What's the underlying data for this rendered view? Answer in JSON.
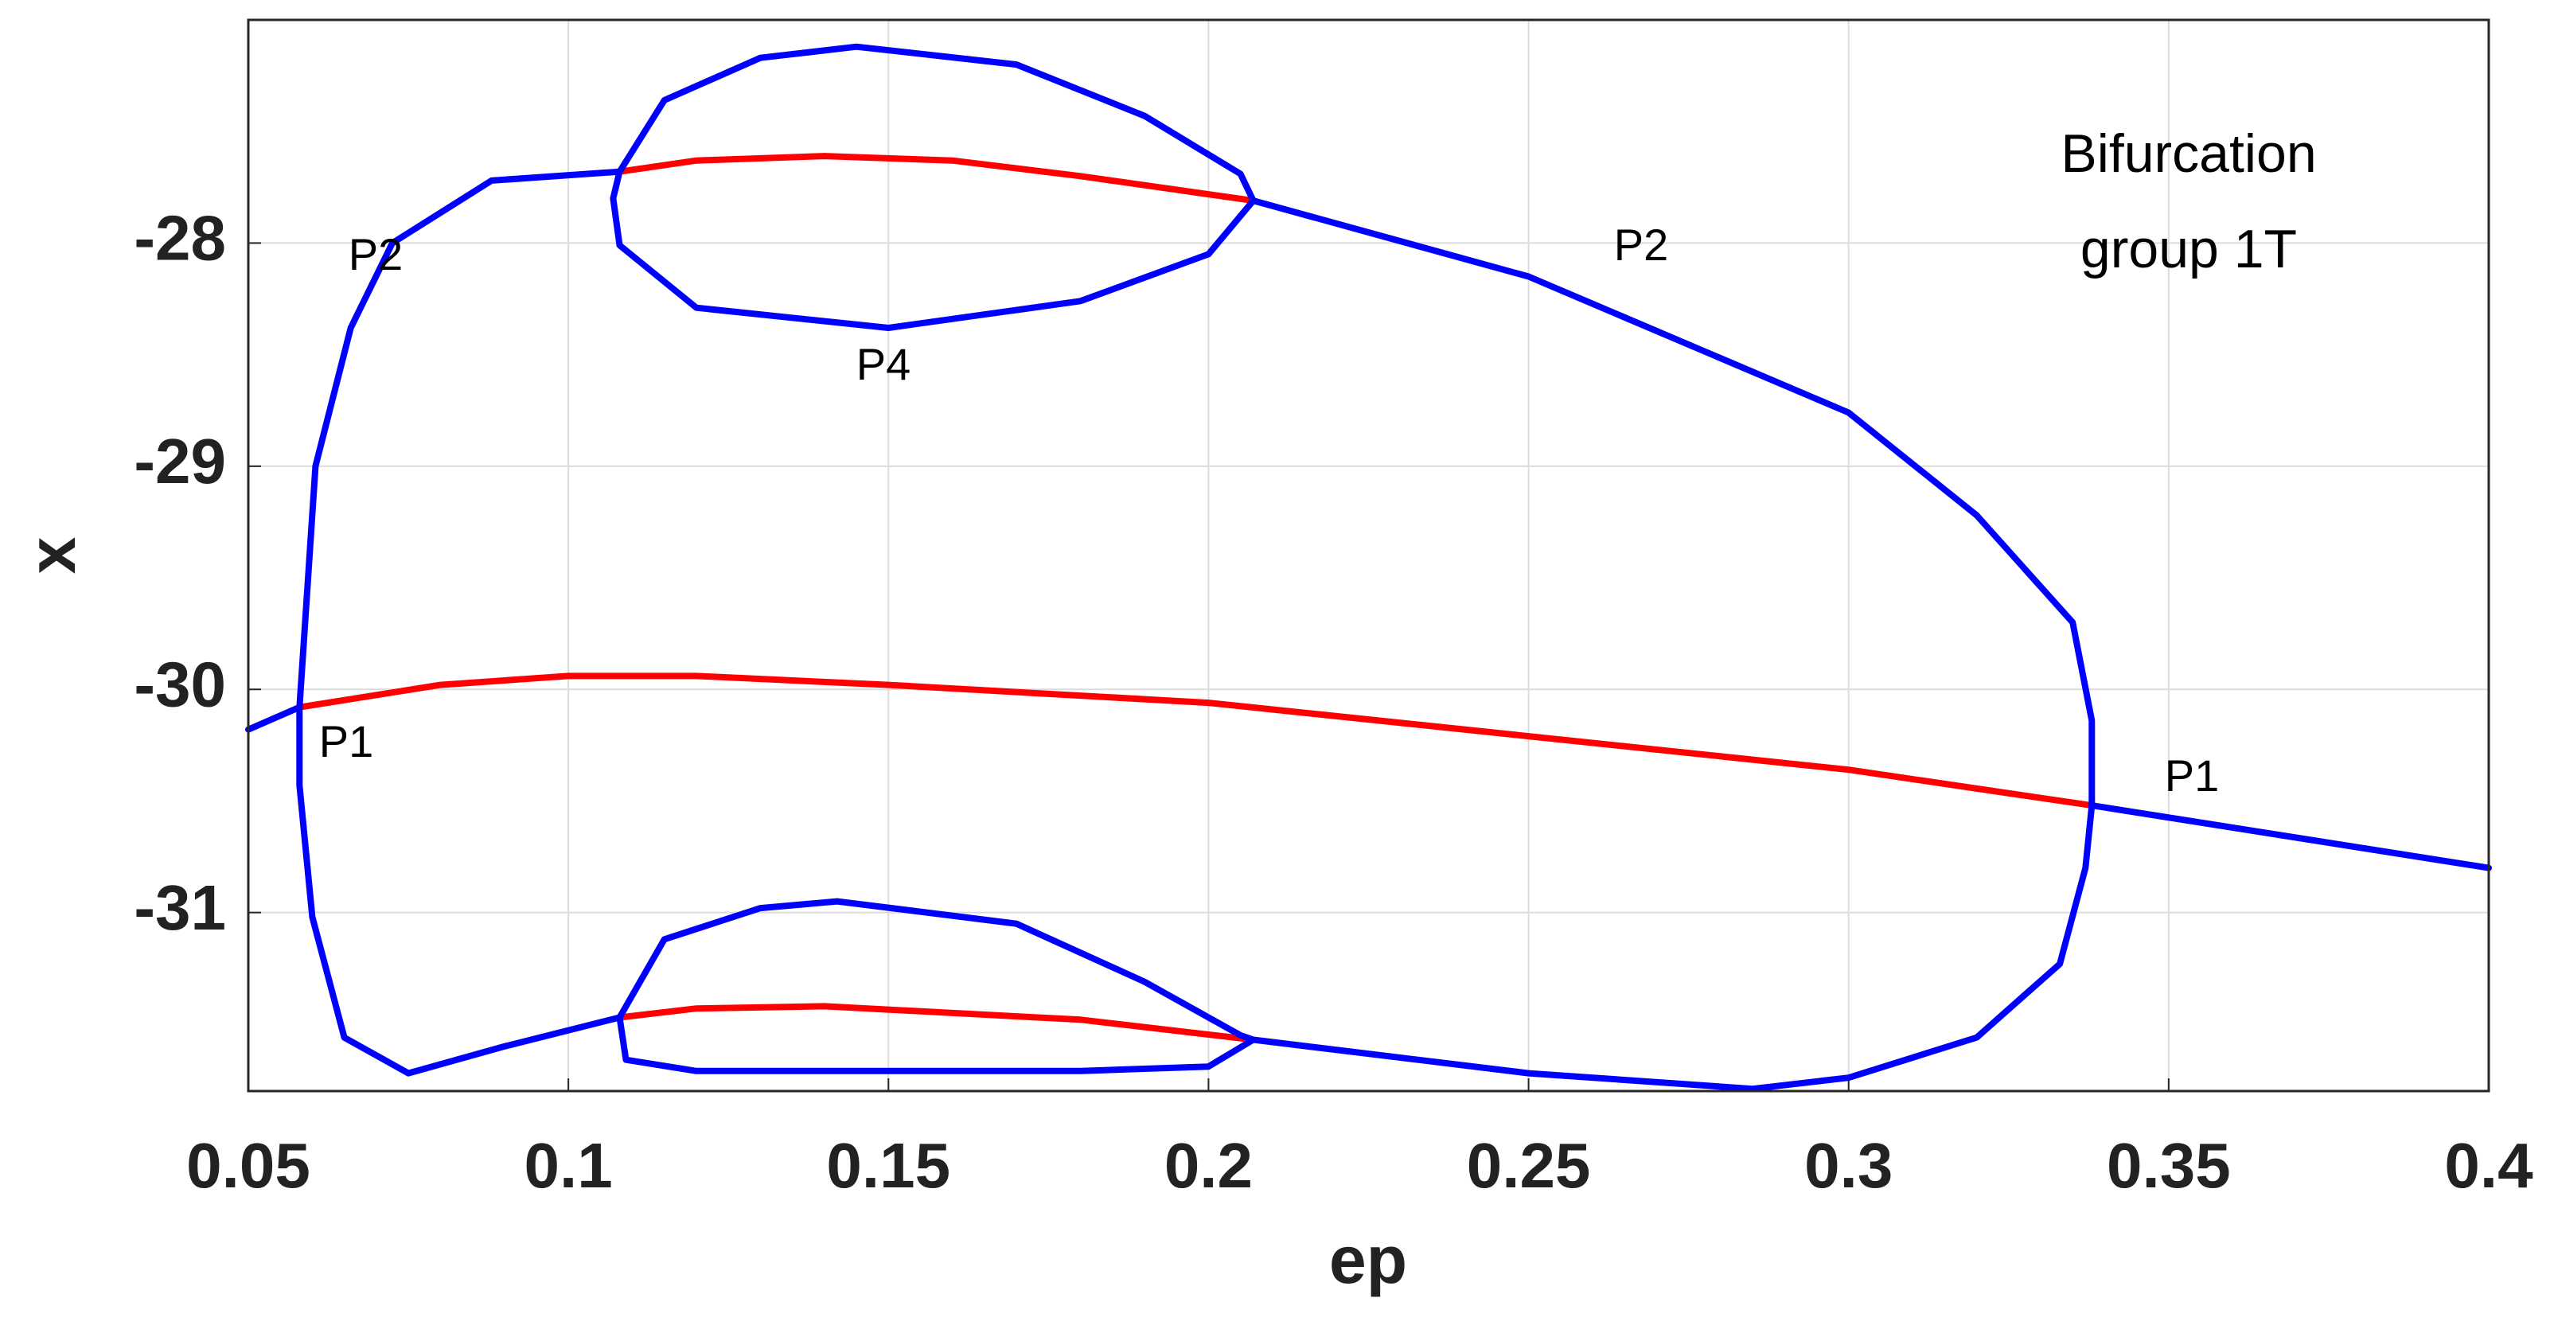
{
  "chart_data": {
    "type": "line",
    "xlabel": "ep",
    "ylabel": "x",
    "xlim": [
      0.05,
      0.4
    ],
    "ylim": [
      -31.8,
      -27
    ],
    "xticks": [
      0.05,
      0.1,
      0.15,
      0.2,
      0.25,
      0.3,
      0.35,
      0.4
    ],
    "yticks": [
      -28,
      -29,
      -30,
      -31
    ],
    "grid": true,
    "series": [
      {
        "color": "#0000ff",
        "x": [
          0.05,
          0.058
        ],
        "y": [
          -30.18,
          -30.08
        ]
      },
      {
        "color": "#ff0000",
        "x": [
          0.058,
          0.08,
          0.1,
          0.12,
          0.15,
          0.2,
          0.25,
          0.3,
          0.338
        ],
        "y": [
          -30.08,
          -29.98,
          -29.94,
          -29.94,
          -29.98,
          -30.06,
          -30.21,
          -30.36,
          -30.52
        ]
      },
      {
        "color": "#0000ff",
        "x": [
          0.338,
          0.4
        ],
        "y": [
          -30.52,
          -30.8
        ]
      },
      {
        "color": "#0000ff",
        "x": [
          0.058,
          0.0605,
          0.066,
          0.0725,
          0.088,
          0.108
        ],
        "y": [
          -30.08,
          -29.0,
          -28.38,
          -28.0,
          -27.72,
          -27.68
        ]
      },
      {
        "color": "#ff0000",
        "x": [
          0.108,
          0.12,
          0.14,
          0.16,
          0.18,
          0.207
        ],
        "y": [
          -27.68,
          -27.63,
          -27.61,
          -27.63,
          -27.7,
          -27.81
        ]
      },
      {
        "color": "#0000ff",
        "x": [
          0.207,
          0.25,
          0.3,
          0.32,
          0.335,
          0.338,
          0.338,
          0.337,
          0.333,
          0.32,
          0.3,
          0.285,
          0.25,
          0.207
        ],
        "y": [
          -27.81,
          -28.15,
          -28.76,
          -29.22,
          -29.7,
          -30.14,
          -30.52,
          -30.8,
          -31.23,
          -31.56,
          -31.74,
          -31.79,
          -31.72,
          -31.57
        ]
      },
      {
        "color": "#ff0000",
        "x": [
          0.207,
          0.18,
          0.14,
          0.12,
          0.108
        ],
        "y": [
          -31.57,
          -31.48,
          -31.42,
          -31.43,
          -31.47
        ]
      },
      {
        "color": "#0000ff",
        "x": [
          0.108,
          0.09,
          0.075,
          0.065,
          0.06,
          0.058,
          0.058
        ],
        "y": [
          -31.47,
          -31.6,
          -31.72,
          -31.56,
          -31.02,
          -30.43,
          -30.08
        ]
      },
      {
        "color": "#0000ff",
        "x": [
          0.108,
          0.115,
          0.13,
          0.145,
          0.17,
          0.19,
          0.205,
          0.207,
          0.2,
          0.18,
          0.15,
          0.12,
          0.108,
          0.107,
          0.108
        ],
        "y": [
          -27.68,
          -27.36,
          -27.17,
          -27.12,
          -27.2,
          -27.43,
          -27.69,
          -27.81,
          -28.05,
          -28.26,
          -28.38,
          -28.29,
          -28.01,
          -27.8,
          -27.68
        ]
      },
      {
        "color": "#0000ff",
        "x": [
          0.108,
          0.115,
          0.13,
          0.142,
          0.17,
          0.19,
          0.205,
          0.207,
          0.2,
          0.18,
          0.15,
          0.12,
          0.109,
          0.108
        ],
        "y": [
          -31.47,
          -31.12,
          -30.98,
          -30.95,
          -31.05,
          -31.31,
          -31.55,
          -31.57,
          -31.69,
          -31.71,
          -31.71,
          -31.71,
          -31.66,
          -31.47
        ]
      }
    ],
    "annotations": [
      "P2",
      "P2",
      "P4",
      "P1",
      "P1"
    ],
    "text_box": [
      "Bifurcation",
      "group 1T"
    ]
  }
}
